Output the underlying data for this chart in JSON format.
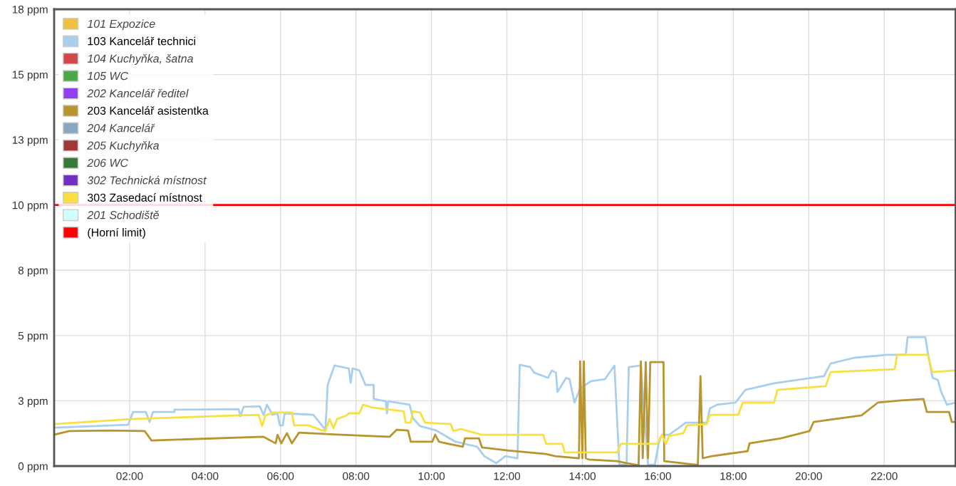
{
  "chart_data": {
    "type": "line",
    "ylim": [
      0,
      17.5
    ],
    "xlim": [
      0,
      23.89
    ],
    "yticks": [
      {
        "value": 0,
        "label": "0 ppm"
      },
      {
        "value": 2.5,
        "label": "3 ppm"
      },
      {
        "value": 5,
        "label": "5 ppm"
      },
      {
        "value": 7.5,
        "label": "8 ppm"
      },
      {
        "value": 10,
        "label": "10 ppm"
      },
      {
        "value": 12.5,
        "label": "13 ppm"
      },
      {
        "value": 15,
        "label": "15 ppm"
      },
      {
        "value": 17.5,
        "label": "18 ppm"
      }
    ],
    "xticks": [
      {
        "value": 2,
        "label": "02:00"
      },
      {
        "value": 4,
        "label": "04:00"
      },
      {
        "value": 6,
        "label": "06:00"
      },
      {
        "value": 8,
        "label": "08:00"
      },
      {
        "value": 10,
        "label": "10:00"
      },
      {
        "value": 12,
        "label": "12:00"
      },
      {
        "value": 14,
        "label": "14:00"
      },
      {
        "value": 16,
        "label": "16:00"
      },
      {
        "value": 18,
        "label": "18:00"
      },
      {
        "value": 20,
        "label": "20:00"
      },
      {
        "value": 22,
        "label": "22:00"
      }
    ],
    "grid": true,
    "legend": "top left",
    "marker": "none",
    "line_style": "solid",
    "series": [
      {
        "name": "101 Expozice",
        "color": "#f0c040"
      },
      {
        "name": "103 Kancelář technici",
        "color": "#a9cfee",
        "x": [
          0,
          1.96,
          2.09,
          2.43,
          2.53,
          2.62,
          3.19,
          3.19,
          4.89,
          4.94,
          5.02,
          5.45,
          5.55,
          5.64,
          5.79,
          5.92,
          5.98,
          6.06,
          6.11,
          6.87,
          7.19,
          7.25,
          7.43,
          7.81,
          7.86,
          7.91,
          8.09,
          8.25,
          8.47,
          8.47,
          8.79,
          8.82,
          8.85,
          9.42,
          9.51,
          9.7,
          10.13,
          10.64,
          11.21,
          11.4,
          11.72,
          11.96,
          12.28,
          12.34,
          12.62,
          12.72,
          13.09,
          13.19,
          13.3,
          13.34,
          13.57,
          13.66,
          13.79,
          13.94,
          14.23,
          14.6,
          14.85,
          14.98,
          15.17,
          15.23,
          15.55,
          15.74,
          15.92,
          16.02,
          16.11,
          16.3,
          16.74,
          17.3,
          17.38,
          17.57,
          18.06,
          18.32,
          19.08,
          19.7,
          20.4,
          20.58,
          21.21,
          22.09,
          22.57,
          22.62,
          23.09,
          23.15,
          23.28,
          23.42,
          23.51,
          23.66,
          23.89
        ],
        "values": [
          1.47,
          1.58,
          2.07,
          2.07,
          1.69,
          2.07,
          2.07,
          2.16,
          2.18,
          1.91,
          2.27,
          2.29,
          1.96,
          2.35,
          1.96,
          2.02,
          1.56,
          1.56,
          2.02,
          1.96,
          1.39,
          3.11,
          3.85,
          3.74,
          3.19,
          3.74,
          3.66,
          3.11,
          3.11,
          2.57,
          2.48,
          2.02,
          2.48,
          2.35,
          1.83,
          1.53,
          1.36,
          0.93,
          0.74,
          0.38,
          0.11,
          0.38,
          0.3,
          3.88,
          3.79,
          3.58,
          3.38,
          3.66,
          3.58,
          2.84,
          3.38,
          3.33,
          2.43,
          2.97,
          3.25,
          3.33,
          3.85,
          0.05,
          0.05,
          3.79,
          3.85,
          0.05,
          0.05,
          0.85,
          1.2,
          1.2,
          1.66,
          1.66,
          2.21,
          2.35,
          2.43,
          2.92,
          3.17,
          3.3,
          3.44,
          3.93,
          4.15,
          4.26,
          4.26,
          4.94,
          4.94,
          4.39,
          3.38,
          3.3,
          2.84,
          2.35,
          2.43
        ]
      },
      {
        "name": "104 Kuchyňka, šatna",
        "color": "#d04848"
      },
      {
        "name": "105 WC",
        "color": "#4aa84a"
      },
      {
        "name": "202 Kancelář ředitel",
        "color": "#9040f0"
      },
      {
        "name": "203 Kancelář asistentka",
        "color": "#b8952e",
        "x": [
          0,
          0.4,
          1.45,
          2.4,
          2.58,
          5.55,
          5.87,
          5.92,
          6.02,
          6.17,
          6.3,
          6.49,
          7.62,
          8.89,
          9.08,
          9.38,
          9.45,
          10.02,
          10.1,
          10.2,
          10.45,
          10.83,
          10.89,
          11.26,
          11.34,
          12.02,
          13.04,
          13.28,
          13.91,
          13.94,
          14.0,
          14.04,
          14.09,
          14.17,
          14.92,
          15.17,
          15.49,
          15.55,
          15.6,
          15.68,
          15.74,
          15.8,
          16.15,
          16.17,
          17.0,
          17.06,
          17.13,
          17.19,
          17.43,
          18.38,
          18.43,
          19.26,
          20.02,
          20.13,
          21.4,
          21.83,
          22.4,
          23.04,
          23.13,
          23.72,
          23.79,
          23.89
        ],
        "values": [
          1.2,
          1.34,
          1.36,
          1.34,
          0.98,
          1.12,
          0.87,
          1.2,
          0.87,
          1.26,
          0.87,
          1.28,
          1.2,
          1.12,
          1.39,
          1.36,
          0.93,
          0.93,
          1.2,
          0.93,
          0.85,
          0.74,
          1.06,
          1.06,
          0.71,
          0.6,
          0.46,
          0.38,
          0.3,
          4.01,
          0.3,
          4.01,
          0.3,
          0.25,
          0.19,
          0.11,
          0.03,
          4.01,
          0.3,
          3.98,
          0.3,
          3.98,
          3.98,
          0.19,
          0.05,
          0.03,
          3.44,
          0.3,
          0.38,
          0.57,
          0.87,
          1.06,
          1.34,
          1.69,
          1.94,
          2.43,
          2.51,
          2.57,
          2.07,
          2.07,
          1.69,
          1.69
        ]
      },
      {
        "name": "204 Kancelář",
        "color": "#88a8c0"
      },
      {
        "name": "205 Kuchyňka",
        "color": "#a03838"
      },
      {
        "name": "206 WC",
        "color": "#387838"
      },
      {
        "name": "302 Technická místnost",
        "color": "#7030c0"
      },
      {
        "name": "303 Zasedací místnost",
        "color": "#f8e040",
        "x": [
          0,
          2.02,
          4.92,
          5.42,
          5.51,
          5.6,
          5.83,
          6.3,
          6.36,
          6.74,
          7.06,
          7.19,
          7.3,
          7.4,
          7.5,
          7.75,
          7.81,
          8.09,
          8.19,
          8.43,
          9.26,
          9.32,
          9.45,
          9.51,
          9.7,
          9.83,
          10.51,
          10.58,
          10.77,
          11.34,
          12.96,
          13.04,
          13.47,
          13.53,
          14.92,
          15.02,
          15.98,
          16.11,
          16.21,
          16.3,
          16.68,
          16.77,
          17.3,
          17.38,
          18.13,
          18.25,
          19.08,
          19.17,
          20.45,
          20.58,
          22.28,
          22.34,
          23.15,
          23.28,
          23.89
        ],
        "values": [
          1.61,
          1.8,
          1.94,
          1.96,
          1.53,
          1.94,
          2.05,
          2.05,
          1.56,
          1.56,
          1.39,
          1.34,
          1.8,
          1.45,
          1.8,
          1.94,
          2.02,
          2.02,
          2.35,
          2.24,
          2.1,
          1.66,
          1.66,
          2.1,
          2.05,
          1.66,
          1.61,
          1.34,
          1.42,
          1.2,
          1.2,
          0.85,
          0.85,
          0.52,
          0.52,
          0.85,
          0.85,
          1.2,
          0.85,
          1.15,
          1.26,
          1.56,
          1.61,
          1.96,
          1.96,
          2.43,
          2.43,
          2.92,
          3.06,
          3.6,
          3.71,
          4.26,
          4.26,
          3.6,
          3.66
        ]
      },
      {
        "name": "201 Schodiště",
        "color": "#d0ffff"
      },
      {
        "name": "(Horní limit)",
        "color": "#ff0000",
        "x": [
          0,
          23.89
        ],
        "values": [
          10,
          10
        ]
      }
    ]
  }
}
